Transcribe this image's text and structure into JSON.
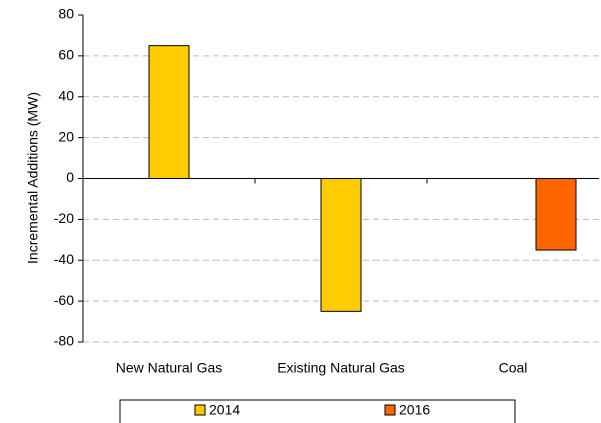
{
  "chart_data": {
    "type": "bar",
    "y_label": "Incremental Additions (MW)",
    "categories": [
      "New Natural Gas",
      "Existing Natural Gas",
      "Coal"
    ],
    "series": [
      {
        "name": "2014",
        "color": "#ffcc00",
        "values": [
          65,
          -65,
          null
        ]
      },
      {
        "name": "2016",
        "color": "#ff6600",
        "values": [
          null,
          null,
          -35
        ]
      }
    ],
    "ylim": [
      -80,
      80
    ],
    "yticks": [
      -80,
      -60,
      -40,
      -20,
      0,
      20,
      40,
      60,
      80
    ],
    "grid": true,
    "legend": "bottom"
  }
}
